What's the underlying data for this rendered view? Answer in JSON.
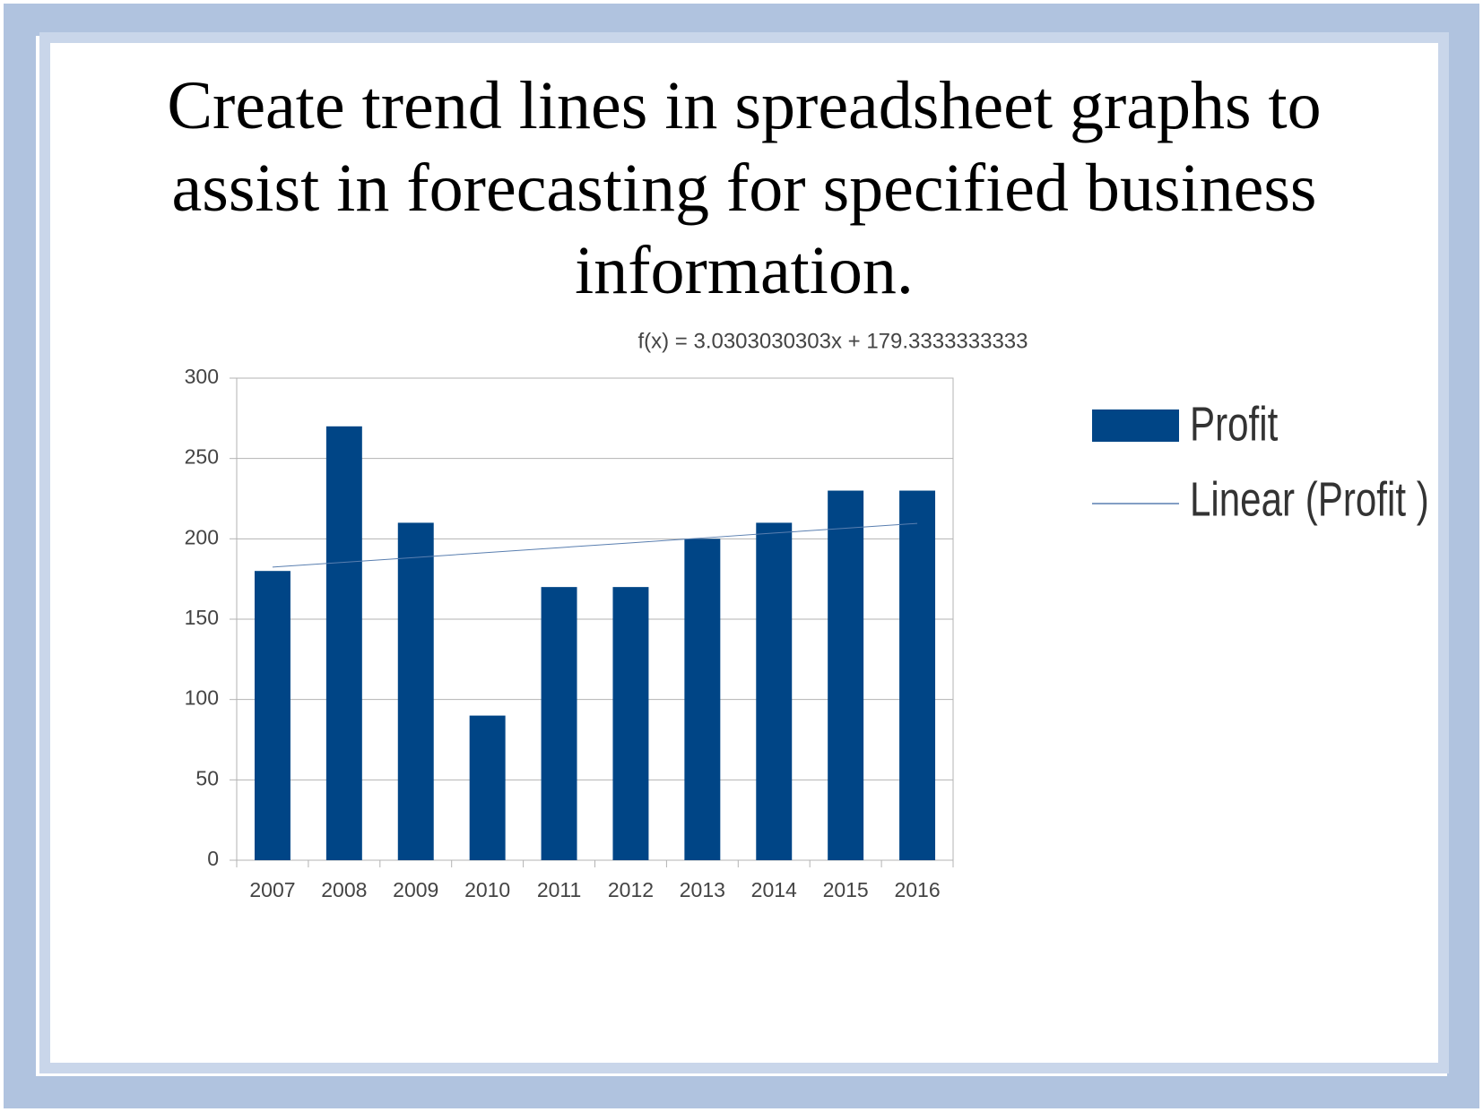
{
  "chart_data": {
    "type": "bar",
    "title": "Create trend lines in spreadsheet graphs to assist in forecasting for specified business information.",
    "annotation": "f(x) = 3.0303030303x + 179.3333333333",
    "categories": [
      "2007",
      "2008",
      "2009",
      "2010",
      "2011",
      "2012",
      "2013",
      "2014",
      "2015",
      "2016"
    ],
    "series": [
      {
        "name": "Profit",
        "color": "#004586",
        "values": [
          180,
          270,
          210,
          90,
          170,
          170,
          200,
          210,
          230,
          230
        ]
      },
      {
        "name": "Linear (Profit )",
        "color": "#5a7fb0",
        "type": "line",
        "values": [
          182.4,
          185.4,
          188.4,
          191.5,
          194.5,
          197.5,
          200.5,
          203.6,
          206.6,
          209.6
        ]
      }
    ],
    "ylim": [
      0,
      300
    ],
    "yticks": [
      0,
      50,
      100,
      150,
      200,
      250,
      300
    ],
    "grid": true,
    "legend": "right"
  }
}
